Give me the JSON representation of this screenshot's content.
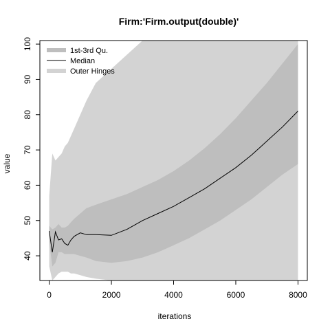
{
  "chart_data": {
    "type": "area",
    "title": "Firm:'Firm.output(double)'",
    "xlabel": "iterations",
    "ylabel": "value",
    "xlim": [
      -300,
      8300
    ],
    "ylim": [
      33,
      101
    ],
    "x_ticks": [
      0,
      2000,
      4000,
      6000,
      8000
    ],
    "y_ticks": [
      40,
      50,
      60,
      70,
      80,
      90,
      100
    ],
    "legend_position": "top-left",
    "legend": [
      {
        "label": "1st-3rd Qu.",
        "color": "#bebebe",
        "style": "band"
      },
      {
        "label": "Median",
        "color": "#000000",
        "style": "line"
      },
      {
        "label": "Outer Hinges",
        "color": "#d3d3d3",
        "style": "band"
      }
    ],
    "x": [
      0,
      100,
      200,
      300,
      400,
      500,
      600,
      700,
      800,
      1000,
      1200,
      1500,
      2000,
      2500,
      3000,
      3500,
      4000,
      4500,
      5000,
      5500,
      6000,
      6500,
      7000,
      7500,
      8000
    ],
    "series": [
      {
        "name": "Median",
        "values": [
          47.0,
          41.0,
          46.8,
          44.5,
          44.8,
          43.5,
          43.0,
          44.5,
          45.5,
          46.5,
          46.0,
          46.0,
          45.8,
          47.5,
          50.0,
          52.0,
          54.0,
          56.5,
          59.0,
          62.0,
          65.0,
          68.5,
          72.5,
          76.5,
          81.0
        ]
      },
      {
        "name": "1st-3rd Qu.",
        "lower": [
          44.0,
          37.0,
          38.0,
          41.0,
          41.0,
          40.5,
          40.5,
          40.5,
          40.5,
          40.0,
          39.5,
          38.5,
          38.0,
          38.5,
          39.5,
          41.0,
          43.0,
          45.0,
          47.5,
          50.0,
          53.0,
          56.0,
          59.5,
          63.0,
          66.0
        ],
        "upper": [
          48.5,
          47.5,
          48.0,
          49.0,
          48.0,
          48.0,
          48.5,
          49.5,
          50.5,
          52.0,
          53.5,
          54.5,
          56.0,
          57.5,
          59.5,
          61.5,
          64.0,
          67.0,
          70.5,
          74.5,
          79.0,
          84.0,
          89.0,
          94.5,
          100.0
        ]
      },
      {
        "name": "Outer Hinges",
        "lower": [
          37.0,
          33.0,
          34.0,
          35.0,
          35.5,
          35.5,
          35.5,
          35.0,
          35.0,
          34.5,
          34.0,
          33.5,
          33.0,
          33.0,
          33.0,
          33.0,
          33.0,
          33.0,
          33.0,
          33.0,
          33.0,
          33.0,
          33.0,
          33.0,
          33.0
        ],
        "upper": [
          57.0,
          69.0,
          67.0,
          68.0,
          69.0,
          71.0,
          72.0,
          74.0,
          76.0,
          80.0,
          84.0,
          89.0,
          93.0,
          97.0,
          101.0,
          101.0,
          101.0,
          101.0,
          101.0,
          101.0,
          101.0,
          101.0,
          101.0,
          101.0,
          101.0
        ]
      }
    ]
  }
}
